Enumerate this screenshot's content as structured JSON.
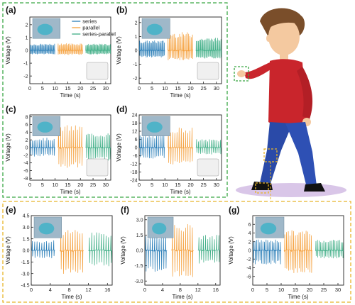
{
  "figure": {
    "colors": {
      "series": "#2c7fb8",
      "parallel": "#f5a03c",
      "series_parallel": "#3fae86",
      "green_frame": "#3aa845",
      "yellow_frame": "#e8b52a",
      "axis": "#222222"
    },
    "legend": {
      "series": "series",
      "parallel": "parallel",
      "series_parallel": "series-parallel"
    },
    "illustration_icons": [
      "walking-person-cartoon",
      "wrist-highlight-box",
      "knee-highlight-box",
      "heel-highlight-box",
      "shadow-ellipse"
    ]
  },
  "chart_data": [
    {
      "id": "a",
      "type": "line",
      "panel_label": "(a)",
      "xlabel": "Time (s)",
      "ylabel": "Voltage (V)",
      "xlim": [
        0,
        32
      ],
      "ylim": [
        -2.6,
        2.6
      ],
      "xticks": [
        "0",
        "5",
        "10",
        "15",
        "20",
        "25",
        "30"
      ],
      "yticks": [
        "2",
        "1",
        "0",
        "-1",
        "-2"
      ],
      "inset_icons": [
        "hand-on-green-sensor-photo",
        "keyboard-typing-icon"
      ],
      "series": [
        {
          "name": "series",
          "x_range": [
            0,
            10
          ],
          "peaks": 26,
          "amp_pos": 0.5,
          "amp_neg": 0.3
        },
        {
          "name": "parallel",
          "x_range": [
            11,
            21
          ],
          "peaks": 24,
          "amp_pos": 0.55,
          "amp_neg": 0.35
        },
        {
          "name": "series-parallel",
          "x_range": [
            22,
            32
          ],
          "peaks": 28,
          "amp_pos": 0.5,
          "amp_neg": 0.3
        }
      ]
    },
    {
      "id": "b",
      "type": "line",
      "panel_label": "(b)",
      "xlabel": "Time (s)",
      "ylabel": "Voltage (V)",
      "xlim": [
        0,
        32
      ],
      "ylim": [
        -2.4,
        2.4
      ],
      "xticks": [
        "0",
        "5",
        "10",
        "15",
        "20",
        "25",
        "30"
      ],
      "yticks": [
        "2",
        "1",
        "0",
        "-1",
        "-2"
      ],
      "inset_icons": [
        "finger-tap-sensor-photo",
        "mouse-click-icon"
      ],
      "series": [
        {
          "name": "series",
          "x_range": [
            0,
            10
          ],
          "peaks": 24,
          "amp_pos": 0.7,
          "amp_neg": 0.5
        },
        {
          "name": "parallel",
          "x_range": [
            11,
            21
          ],
          "peaks": 20,
          "amp_pos": 1.3,
          "amp_neg": 0.7
        },
        {
          "name": "series-parallel",
          "x_range": [
            22,
            32
          ],
          "peaks": 24,
          "amp_pos": 0.9,
          "amp_neg": 0.6
        }
      ]
    },
    {
      "id": "c",
      "type": "line",
      "panel_label": "(c)",
      "xlabel": "Time (s)",
      "ylabel": "Voltage (V)",
      "xlim": [
        0,
        32
      ],
      "ylim": [
        -8.5,
        8.5
      ],
      "xticks": [
        "0",
        "5",
        "10",
        "15",
        "20",
        "25",
        "30"
      ],
      "yticks": [
        "8",
        "6",
        "4",
        "2",
        "0",
        "-2",
        "-4",
        "-6",
        "-8"
      ],
      "inset_icons": [
        "hand-press-sensor-photo",
        "skier-figure-icon"
      ],
      "series": [
        {
          "name": "series",
          "x_range": [
            0,
            10
          ],
          "peaks": 14,
          "amp_pos": 2.5,
          "amp_neg": 2.3
        },
        {
          "name": "parallel",
          "x_range": [
            11,
            21
          ],
          "peaks": 12,
          "amp_pos": 5.8,
          "amp_neg": 5.4
        },
        {
          "name": "series-parallel",
          "x_range": [
            22,
            32
          ],
          "peaks": 14,
          "amp_pos": 3.8,
          "amp_neg": 3.4
        }
      ]
    },
    {
      "id": "d",
      "type": "line",
      "panel_label": "(d)",
      "xlabel": "Time (s)",
      "ylabel": "Voltage (V)",
      "xlim": [
        0,
        32
      ],
      "ylim": [
        -24,
        24
      ],
      "xticks": [
        "0",
        "5",
        "10",
        "15",
        "20",
        "25",
        "30"
      ],
      "yticks": [
        "24",
        "18",
        "12",
        "6",
        "0",
        "-6",
        "-12",
        "-18",
        "-24"
      ],
      "inset_icons": [
        "hand-squeeze-sensor-photo",
        "boxing-gloves-icon"
      ],
      "series": [
        {
          "name": "series",
          "x_range": [
            0,
            10
          ],
          "peaks": 14,
          "amp_pos": 9,
          "amp_neg": 8
        },
        {
          "name": "parallel",
          "x_range": [
            11,
            21
          ],
          "peaks": 12,
          "amp_pos": 15,
          "amp_neg": 13
        },
        {
          "name": "series-parallel",
          "x_range": [
            22,
            32
          ],
          "peaks": 14,
          "amp_pos": 6,
          "amp_neg": 5
        }
      ]
    },
    {
      "id": "e",
      "type": "line",
      "panel_label": "(e)",
      "xlabel": "Time (s)",
      "ylabel": "Voltage (V)",
      "xlim": [
        0,
        17
      ],
      "ylim": [
        -4.5,
        4.5
      ],
      "xticks": [
        "0",
        "4",
        "8",
        "12",
        "16"
      ],
      "yticks": [
        "4.5",
        "3.0",
        "1.5",
        "0.0",
        "-1.5",
        "-3.0",
        "-4.5"
      ],
      "inset_icons": [
        "knee-sensor-photo"
      ],
      "series": [
        {
          "name": "series",
          "x_range": [
            0,
            5
          ],
          "peaks": 10,
          "amp_pos": 1.3,
          "amp_neg": 1.0
        },
        {
          "name": "parallel",
          "x_range": [
            6,
            11
          ],
          "peaks": 10,
          "amp_pos": 2.8,
          "amp_neg": 3.2
        },
        {
          "name": "series-parallel",
          "x_range": [
            12,
            17
          ],
          "peaks": 10,
          "amp_pos": 2.3,
          "amp_neg": 2.1
        }
      ]
    },
    {
      "id": "f",
      "type": "line",
      "panel_label": "(f)",
      "xlabel": "Time (s)",
      "ylabel": "Voltage (V)",
      "xlim": [
        0,
        17
      ],
      "ylim": [
        -3.4,
        3.4
      ],
      "xticks": [
        "0",
        "4",
        "8",
        "12",
        "16"
      ],
      "yticks": [
        "3.0",
        "1.5",
        "0.0",
        "-1.5",
        "-3.0"
      ],
      "inset_icons": [
        "shoe-sensor-photo"
      ],
      "series": [
        {
          "name": "series",
          "x_range": [
            0,
            5
          ],
          "peaks": 10,
          "amp_pos": 1.6,
          "amp_neg": 2.1
        },
        {
          "name": "parallel",
          "x_range": [
            6,
            11
          ],
          "peaks": 10,
          "amp_pos": 2.6,
          "amp_neg": 2.6
        },
        {
          "name": "series-parallel",
          "x_range": [
            12,
            17
          ],
          "peaks": 10,
          "amp_pos": 1.5,
          "amp_neg": 1.3
        }
      ]
    },
    {
      "id": "g",
      "type": "line",
      "panel_label": "(g)",
      "xlabel": "Time (s)",
      "ylabel": "Voltage (V)",
      "xlim": [
        0,
        32
      ],
      "ylim": [
        -8,
        8
      ],
      "xticks": [
        "0",
        "5",
        "10",
        "15",
        "20",
        "25",
        "30"
      ],
      "yticks": [
        "6",
        "4",
        "2",
        "0",
        "-2",
        "-4",
        "-6"
      ],
      "inset_icons": [
        "heel-sensor-photo"
      ],
      "series": [
        {
          "name": "series",
          "x_range": [
            0,
            10
          ],
          "peaks": 18,
          "amp_pos": 2.5,
          "amp_neg": 3.2
        },
        {
          "name": "parallel",
          "x_range": [
            11,
            21
          ],
          "peaks": 16,
          "amp_pos": 4.6,
          "amp_neg": 5.3
        },
        {
          "name": "series-parallel",
          "x_range": [
            22,
            32
          ],
          "peaks": 18,
          "amp_pos": 2.5,
          "amp_neg": 1.8
        }
      ]
    }
  ]
}
